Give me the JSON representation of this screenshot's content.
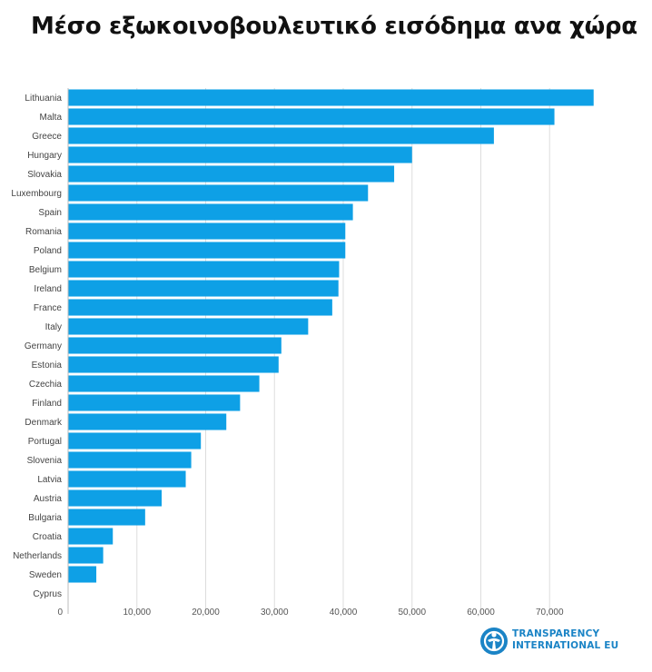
{
  "page": {
    "title": "Μέσο εξωκοινοβουλευτικό εισόδημα ανα χώρα"
  },
  "logo": {
    "line1": "TRANSPARENCY",
    "line2": "INTERNATIONAL EU",
    "color": "#1b84c6"
  },
  "chart_data": {
    "type": "bar",
    "orientation": "horizontal",
    "title": "Μέσο εξωκοινοβουλευτικό εισόδημα ανα χώρα",
    "xlabel": "",
    "ylabel": "",
    "xlim": [
      0,
      80000
    ],
    "grid": true,
    "bar_color": "#0ea0e6",
    "x_ticks": [
      "0",
      "10,000",
      "20,000",
      "30,000",
      "40,000",
      "50,000",
      "60,000",
      "70,000"
    ],
    "x_tick_values": [
      0,
      10000,
      20000,
      30000,
      40000,
      50000,
      60000,
      70000
    ],
    "categories": [
      "Lithuania",
      "Malta",
      "Greece",
      "Hungary",
      "Slovakia",
      "Luxembourg",
      "Spain",
      "Romania",
      "Poland",
      "Belgium",
      "Ireland",
      "France",
      "Italy",
      "Germany",
      "Estonia",
      "Czechia",
      "Finland",
      "Denmark",
      "Portugal",
      "Slovenia",
      "Latvia",
      "Austria",
      "Bulgaria",
      "Croatia",
      "Netherlands",
      "Sweden",
      "Cyprus"
    ],
    "values": [
      76400,
      70700,
      61900,
      50000,
      47400,
      43600,
      41400,
      40300,
      40300,
      39400,
      39300,
      38400,
      34900,
      31000,
      30600,
      27800,
      25000,
      23000,
      19300,
      17900,
      17100,
      13600,
      11200,
      6500,
      5100,
      4100,
      0
    ]
  }
}
